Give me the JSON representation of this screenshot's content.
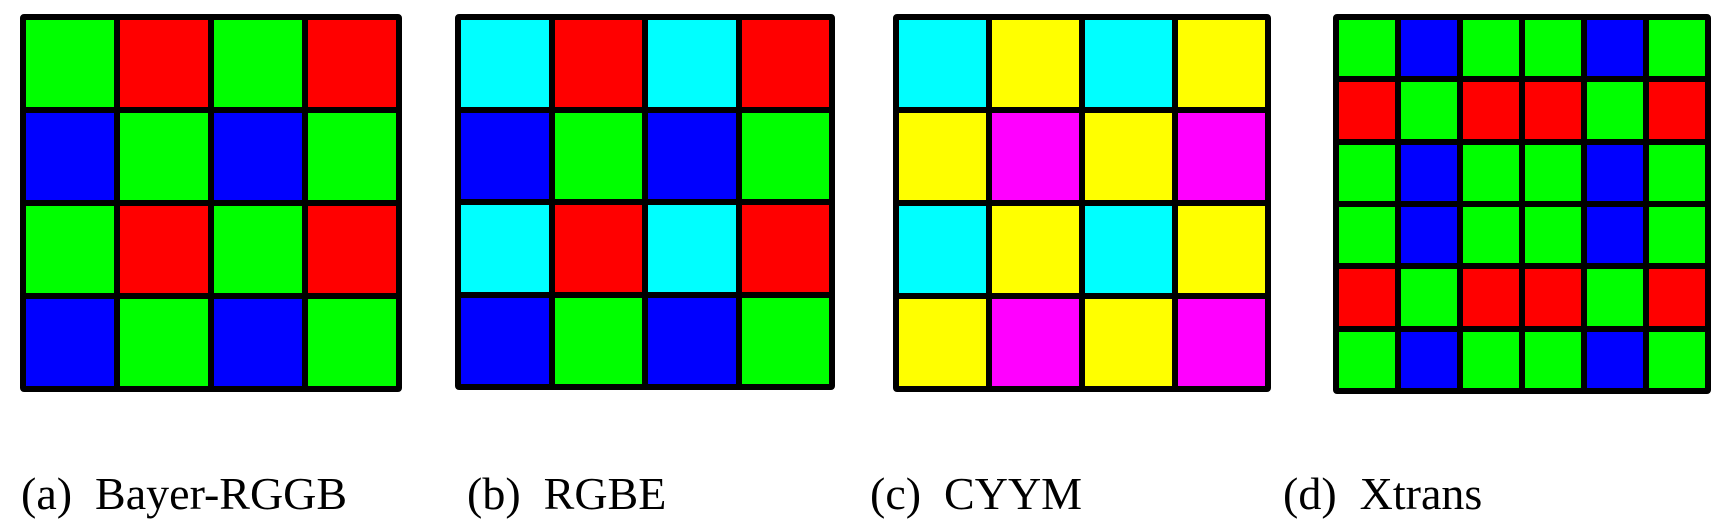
{
  "colors": {
    "R": "#ff0000",
    "G": "#00ff00",
    "B": "#0000ff",
    "E": "#00ffff",
    "C": "#00ffff",
    "Y": "#ffff00",
    "M": "#ff00ff"
  },
  "patterns": [
    {
      "caption": "(a)  Bayer-RGGB",
      "grid": [
        [
          "G",
          "R",
          "G",
          "R"
        ],
        [
          "B",
          "G",
          "B",
          "G"
        ],
        [
          "G",
          "R",
          "G",
          "R"
        ],
        [
          "B",
          "G",
          "B",
          "G"
        ]
      ]
    },
    {
      "caption": "(b)  RGBE",
      "grid": [
        [
          "E",
          "R",
          "E",
          "R"
        ],
        [
          "B",
          "G",
          "B",
          "G"
        ],
        [
          "E",
          "R",
          "E",
          "R"
        ],
        [
          "B",
          "G",
          "B",
          "G"
        ]
      ]
    },
    {
      "caption": "(c)  CYYM",
      "grid": [
        [
          "C",
          "Y",
          "C",
          "Y"
        ],
        [
          "Y",
          "M",
          "Y",
          "M"
        ],
        [
          "C",
          "Y",
          "C",
          "Y"
        ],
        [
          "Y",
          "M",
          "Y",
          "M"
        ]
      ]
    },
    {
      "caption": "(d)  Xtrans",
      "grid": [
        [
          "G",
          "B",
          "G",
          "G",
          "B",
          "G"
        ],
        [
          "R",
          "G",
          "R",
          "R",
          "G",
          "R"
        ],
        [
          "G",
          "B",
          "G",
          "G",
          "B",
          "G"
        ],
        [
          "G",
          "B",
          "G",
          "G",
          "B",
          "G"
        ],
        [
          "R",
          "G",
          "R",
          "R",
          "G",
          "R"
        ],
        [
          "G",
          "B",
          "G",
          "G",
          "B",
          "G"
        ]
      ]
    }
  ]
}
